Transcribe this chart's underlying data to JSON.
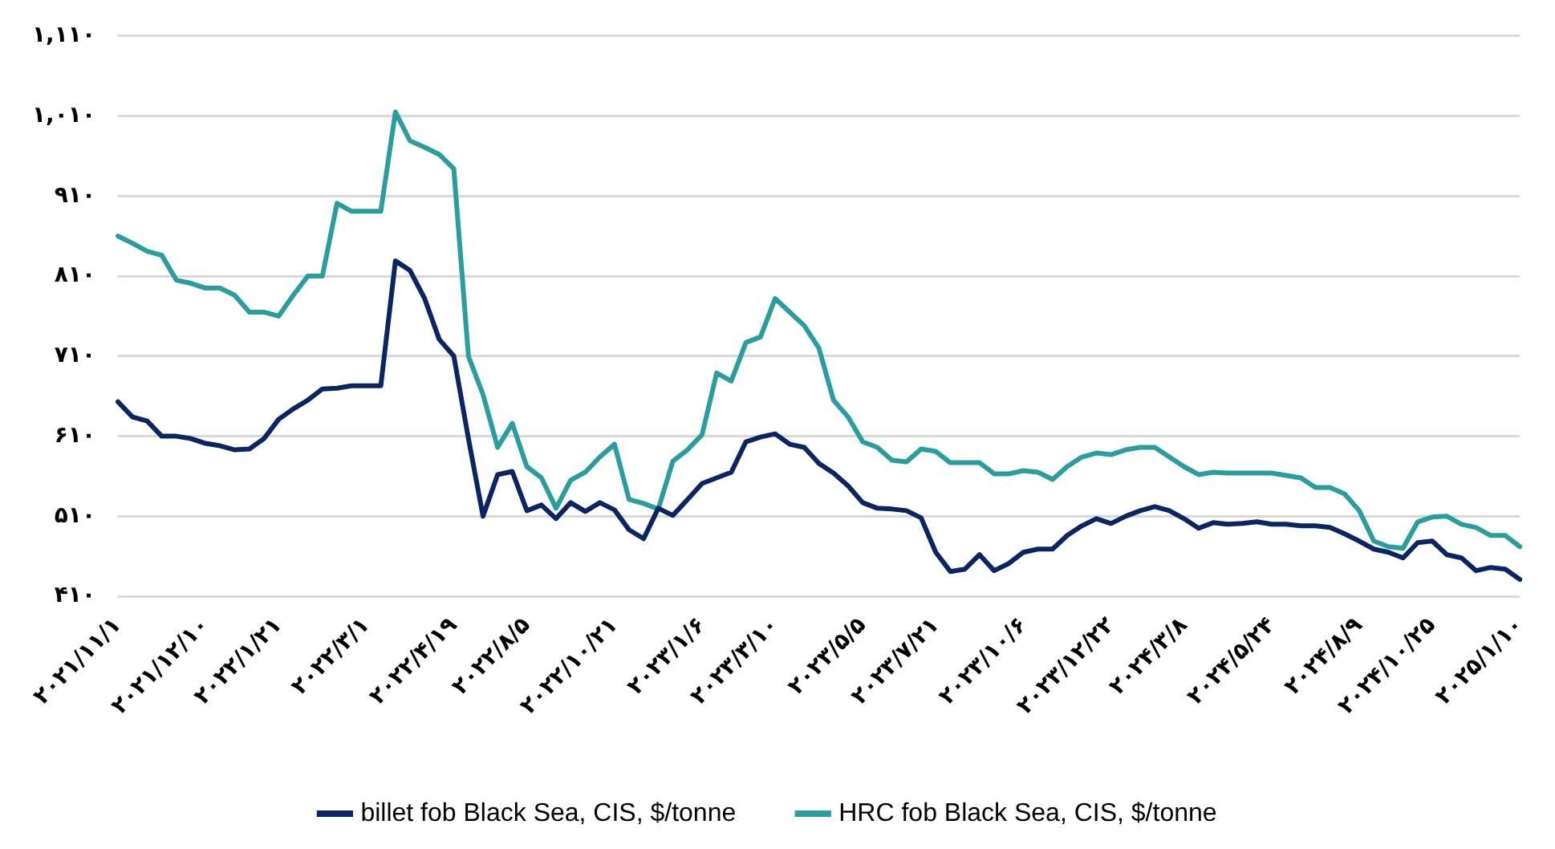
{
  "chart_data": {
    "type": "line",
    "categories": [
      "۲۰۲۱/۱۱/۱",
      null,
      null,
      null,
      null,
      null,
      "۲۰۲۱/۱۲/۱۰",
      null,
      null,
      null,
      null,
      "۲۰۲۲/۱/۲۱",
      null,
      null,
      null,
      null,
      null,
      "۲۰۲۲/۳/۱",
      null,
      null,
      null,
      null,
      null,
      "۲۰۲۲/۴/۱۹",
      null,
      null,
      null,
      null,
      "۲۰۲۲/۸/۵",
      null,
      null,
      null,
      null,
      null,
      "۲۰۲۲/۱۰/۲۱",
      null,
      null,
      null,
      null,
      null,
      "۲۰۲۳/۱/۶",
      null,
      null,
      null,
      null,
      "۲۰۲۳/۳/۱۰",
      null,
      null,
      null,
      null,
      null,
      "۲۰۲۳/۵/۵",
      null,
      null,
      null,
      null,
      "۲۰۲۳/۷/۲۱",
      null,
      null,
      null,
      null,
      null,
      "۲۰۲۳/۱۰/۶",
      null,
      null,
      null,
      null,
      null,
      "۲۰۲۳/۱۲/۲۲",
      null,
      null,
      null,
      null,
      "۲۰۲۴/۳/۸",
      null,
      null,
      null,
      null,
      null,
      "۲۰۲۴/۵/۲۴",
      null,
      null,
      null,
      null,
      null,
      "۲۰۲۴/۸/۹",
      null,
      null,
      null,
      null,
      "۲۰۲۴/۱۰/۲۵",
      null,
      null,
      null,
      null,
      null,
      "۲۰۲۵/۱/۱۰"
    ],
    "series": [
      {
        "name": "billet fob Black Sea, CIS, $/tonne",
        "color": "#0b2463",
        "values": [
          653,
          634,
          629,
          610,
          610,
          607,
          601,
          598,
          593,
          594,
          607,
          631,
          644,
          655,
          669,
          670,
          673,
          673,
          673,
          829,
          817,
          782,
          731,
          710,
          607,
          510,
          562,
          566,
          517,
          524,
          507,
          527,
          516,
          527,
          518,
          493,
          482,
          520,
          511,
          531,
          551,
          558,
          565,
          603,
          609,
          613,
          600,
          596,
          576,
          564,
          548,
          527,
          520,
          519,
          517,
          508,
          465,
          441,
          444,
          462,
          442,
          451,
          465,
          469,
          469,
          486,
          498,
          507,
          501,
          510,
          517,
          522,
          517,
          507,
          495,
          502,
          500,
          501,
          503,
          500,
          500,
          498,
          498,
          496,
          488,
          479,
          469,
          465,
          458,
          477,
          479,
          462,
          458,
          442,
          446,
          444,
          431
        ]
      },
      {
        "name": "HRC fob Black Sea, CIS, $/tonne",
        "color": "#2a9d9f",
        "values": [
          860,
          851,
          841,
          836,
          805,
          801,
          795,
          795,
          786,
          765,
          765,
          760,
          786,
          810,
          810,
          901,
          891,
          891,
          891,
          1015,
          979,
          971,
          962,
          944,
          710,
          662,
          596,
          626,
          572,
          558,
          520,
          555,
          565,
          584,
          600,
          531,
          526,
          519,
          579,
          593,
          612,
          689,
          679,
          727,
          734,
          782,
          765,
          748,
          720,
          655,
          634,
          603,
          596,
          580,
          578,
          594,
          591,
          577,
          577,
          577,
          563,
          563,
          567,
          565,
          556,
          572,
          584,
          589,
          587,
          593,
          596,
          596,
          584,
          572,
          562,
          565,
          564,
          564,
          564,
          564,
          561,
          558,
          546,
          546,
          538,
          517,
          479,
          472,
          470,
          503,
          509,
          510,
          500,
          496,
          486,
          486,
          472
        ]
      }
    ],
    "ylim": [
      410,
      1110
    ],
    "yticks": [
      {
        "value": 410,
        "label": "۴۱۰"
      },
      {
        "value": 510,
        "label": "۵۱۰"
      },
      {
        "value": 610,
        "label": "۶۱۰"
      },
      {
        "value": 710,
        "label": "۷۱۰"
      },
      {
        "value": 810,
        "label": "۸۱۰"
      },
      {
        "value": 910,
        "label": "۹۱۰"
      },
      {
        "value": 1010,
        "label": "۱,۰۱۰"
      },
      {
        "value": 1110,
        "label": "۱,۱۱۰"
      }
    ],
    "grid": "y",
    "legend": "bottom",
    "marker": "none",
    "line_style": "solid"
  }
}
